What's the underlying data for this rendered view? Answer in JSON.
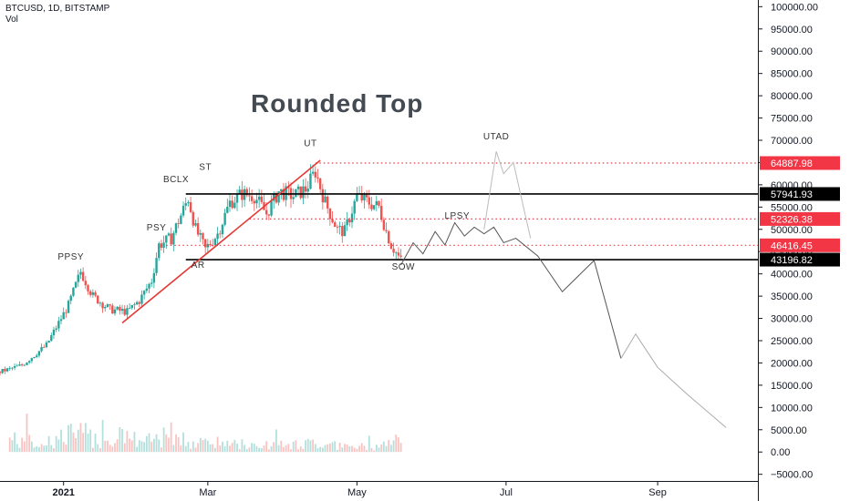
{
  "header": {
    "symbol_line": "BTCUSD, 1D, BITSTAMP",
    "volume_label": "Vol"
  },
  "chart_data": {
    "type": "candlestick",
    "title": "Rounded Top",
    "y_axis_ticks": [
      100000,
      95000,
      90000,
      85000,
      80000,
      75000,
      70000,
      65000,
      60000,
      55000,
      50000,
      45000,
      40000,
      35000,
      30000,
      25000,
      20000,
      15000,
      10000,
      5000,
      0,
      -5000
    ],
    "y_axis_tick_labels": [
      "100000.00",
      "95000.00",
      "90000.00",
      "85000.00",
      "80000.00",
      "75000.00",
      "70000.00",
      "65000.00",
      "60000.00",
      "55000.00",
      "50000.00",
      "45000.00",
      "40000.00",
      "35000.00",
      "30000.00",
      "25000.00",
      "20000.00",
      "15000.00",
      "10000.00",
      "5000.00",
      "0.00",
      "−5000.00"
    ],
    "ylim": [
      -6500,
      101500
    ],
    "x_axis_labels": [
      {
        "label": "2021",
        "date": "2021-01-01"
      },
      {
        "label": "Mar",
        "date": "2021-03-01"
      },
      {
        "label": "May",
        "date": "2021-05-01"
      },
      {
        "label": "Jul",
        "date": "2021-07-01"
      },
      {
        "label": "Sep",
        "date": "2021-09-01"
      }
    ],
    "x_range": [
      "2020-12-06",
      "2021-10-12"
    ],
    "price_series": {
      "dates": [
        "2020-12-06",
        "2020-12-15",
        "2020-12-25",
        "2021-01-03",
        "2021-01-08",
        "2021-01-13",
        "2021-01-20",
        "2021-01-27",
        "2021-02-01",
        "2021-02-06",
        "2021-02-09",
        "2021-02-14",
        "2021-02-21",
        "2021-02-24",
        "2021-02-28",
        "2021-03-05",
        "2021-03-10",
        "2021-03-15",
        "2021-03-20",
        "2021-03-25",
        "2021-03-30",
        "2021-04-05",
        "2021-04-10",
        "2021-04-14",
        "2021-04-18",
        "2021-04-23",
        "2021-04-26",
        "2021-05-01",
        "2021-05-06",
        "2021-05-10",
        "2021-05-13",
        "2021-05-15",
        "2021-05-19"
      ],
      "close": [
        18000,
        19500,
        24000,
        33000,
        40500,
        35000,
        32000,
        31500,
        34000,
        38500,
        46500,
        48000,
        57000,
        50000,
        45500,
        49000,
        56000,
        58000,
        57500,
        53500,
        58500,
        57500,
        59000,
        63000,
        56000,
        50000,
        49500,
        57500,
        56000,
        55000,
        49500,
        46500,
        43000
      ]
    },
    "volume_series": {
      "dates": [
        "2020-12-10",
        "2020-12-20",
        "2020-12-28",
        "2021-01-04",
        "2021-01-11",
        "2021-01-18",
        "2021-01-25",
        "2021-02-05",
        "2021-02-10",
        "2021-02-22",
        "2021-03-01",
        "2021-03-12",
        "2021-03-22",
        "2021-04-02",
        "2021-04-15",
        "2021-04-20",
        "2021-04-27",
        "2021-05-06",
        "2021-05-12",
        "2021-05-19"
      ],
      "values": [
        6000,
        4200,
        5500,
        8300,
        7400,
        5100,
        6300,
        4900,
        6500,
        5300,
        4300,
        3700,
        3100,
        2700,
        4200,
        2900,
        2300,
        2400,
        3600,
        5500
      ]
    },
    "projection_path": {
      "dates": [
        "2021-05-19",
        "2021-05-24",
        "2021-05-28",
        "2021-06-02",
        "2021-06-06",
        "2021-06-10",
        "2021-06-14",
        "2021-06-18",
        "2021-06-22",
        "2021-06-26",
        "2021-06-30",
        "2021-07-05",
        "2021-07-14",
        "2021-07-24",
        "2021-08-06",
        "2021-08-17",
        "2021-08-23",
        "2021-09-01",
        "2021-09-13",
        "2021-09-29"
      ],
      "values": [
        42000,
        47000,
        44500,
        49500,
        46500,
        51500,
        48500,
        50500,
        49000,
        50500,
        47000,
        48000,
        44000,
        36000,
        43000,
        21000,
        26500,
        19000,
        13000,
        5500
      ]
    },
    "utad_path": {
      "dates": [
        "2021-06-22",
        "2021-06-27",
        "2021-06-30",
        "2021-07-04",
        "2021-07-11"
      ],
      "values": [
        50000,
        67500,
        62500,
        65000,
        48000
      ]
    },
    "trendline": {
      "from": {
        "date": "2021-01-25",
        "value": 29000
      },
      "to": {
        "date": "2021-04-16",
        "value": 65500
      }
    },
    "support_resistance_lines": [
      {
        "value": 57941.93,
        "label": "57941.93",
        "style": "solid",
        "color": "#000000"
      },
      {
        "value": 43196.82,
        "label": "43196.82",
        "style": "solid",
        "color": "#000000"
      }
    ],
    "dotted_levels": [
      {
        "value": 64887.98,
        "label": "64887.98",
        "color": "#f23645"
      },
      {
        "value": 52326.38,
        "label": "52326.38",
        "color": "#f23645"
      },
      {
        "value": 46416.45,
        "label": "46416.45",
        "color": "#f23645"
      }
    ],
    "annotations": [
      {
        "text": "PPSY",
        "date": "2021-01-04",
        "value": 43200
      },
      {
        "text": "PSY",
        "date": "2021-02-08",
        "value": 49800
      },
      {
        "text": "BCLX",
        "date": "2021-02-16",
        "value": 60600
      },
      {
        "text": "ST",
        "date": "2021-02-28",
        "value": 63400
      },
      {
        "text": "UT",
        "date": "2021-04-12",
        "value": 68700
      },
      {
        "text": "AR",
        "date": "2021-02-25",
        "value": 41400
      },
      {
        "text": "UTAD",
        "date": "2021-06-27",
        "value": 70200
      },
      {
        "text": "LPSY",
        "date": "2021-06-11",
        "value": 52400
      },
      {
        "text": "SOW",
        "date": "2021-05-20",
        "value": 41000
      }
    ],
    "colors": {
      "up": "#26a69a",
      "down": "#ef5350",
      "trendline": "#e53935",
      "projection": "#555555",
      "utad": "#bbbbbb"
    }
  }
}
